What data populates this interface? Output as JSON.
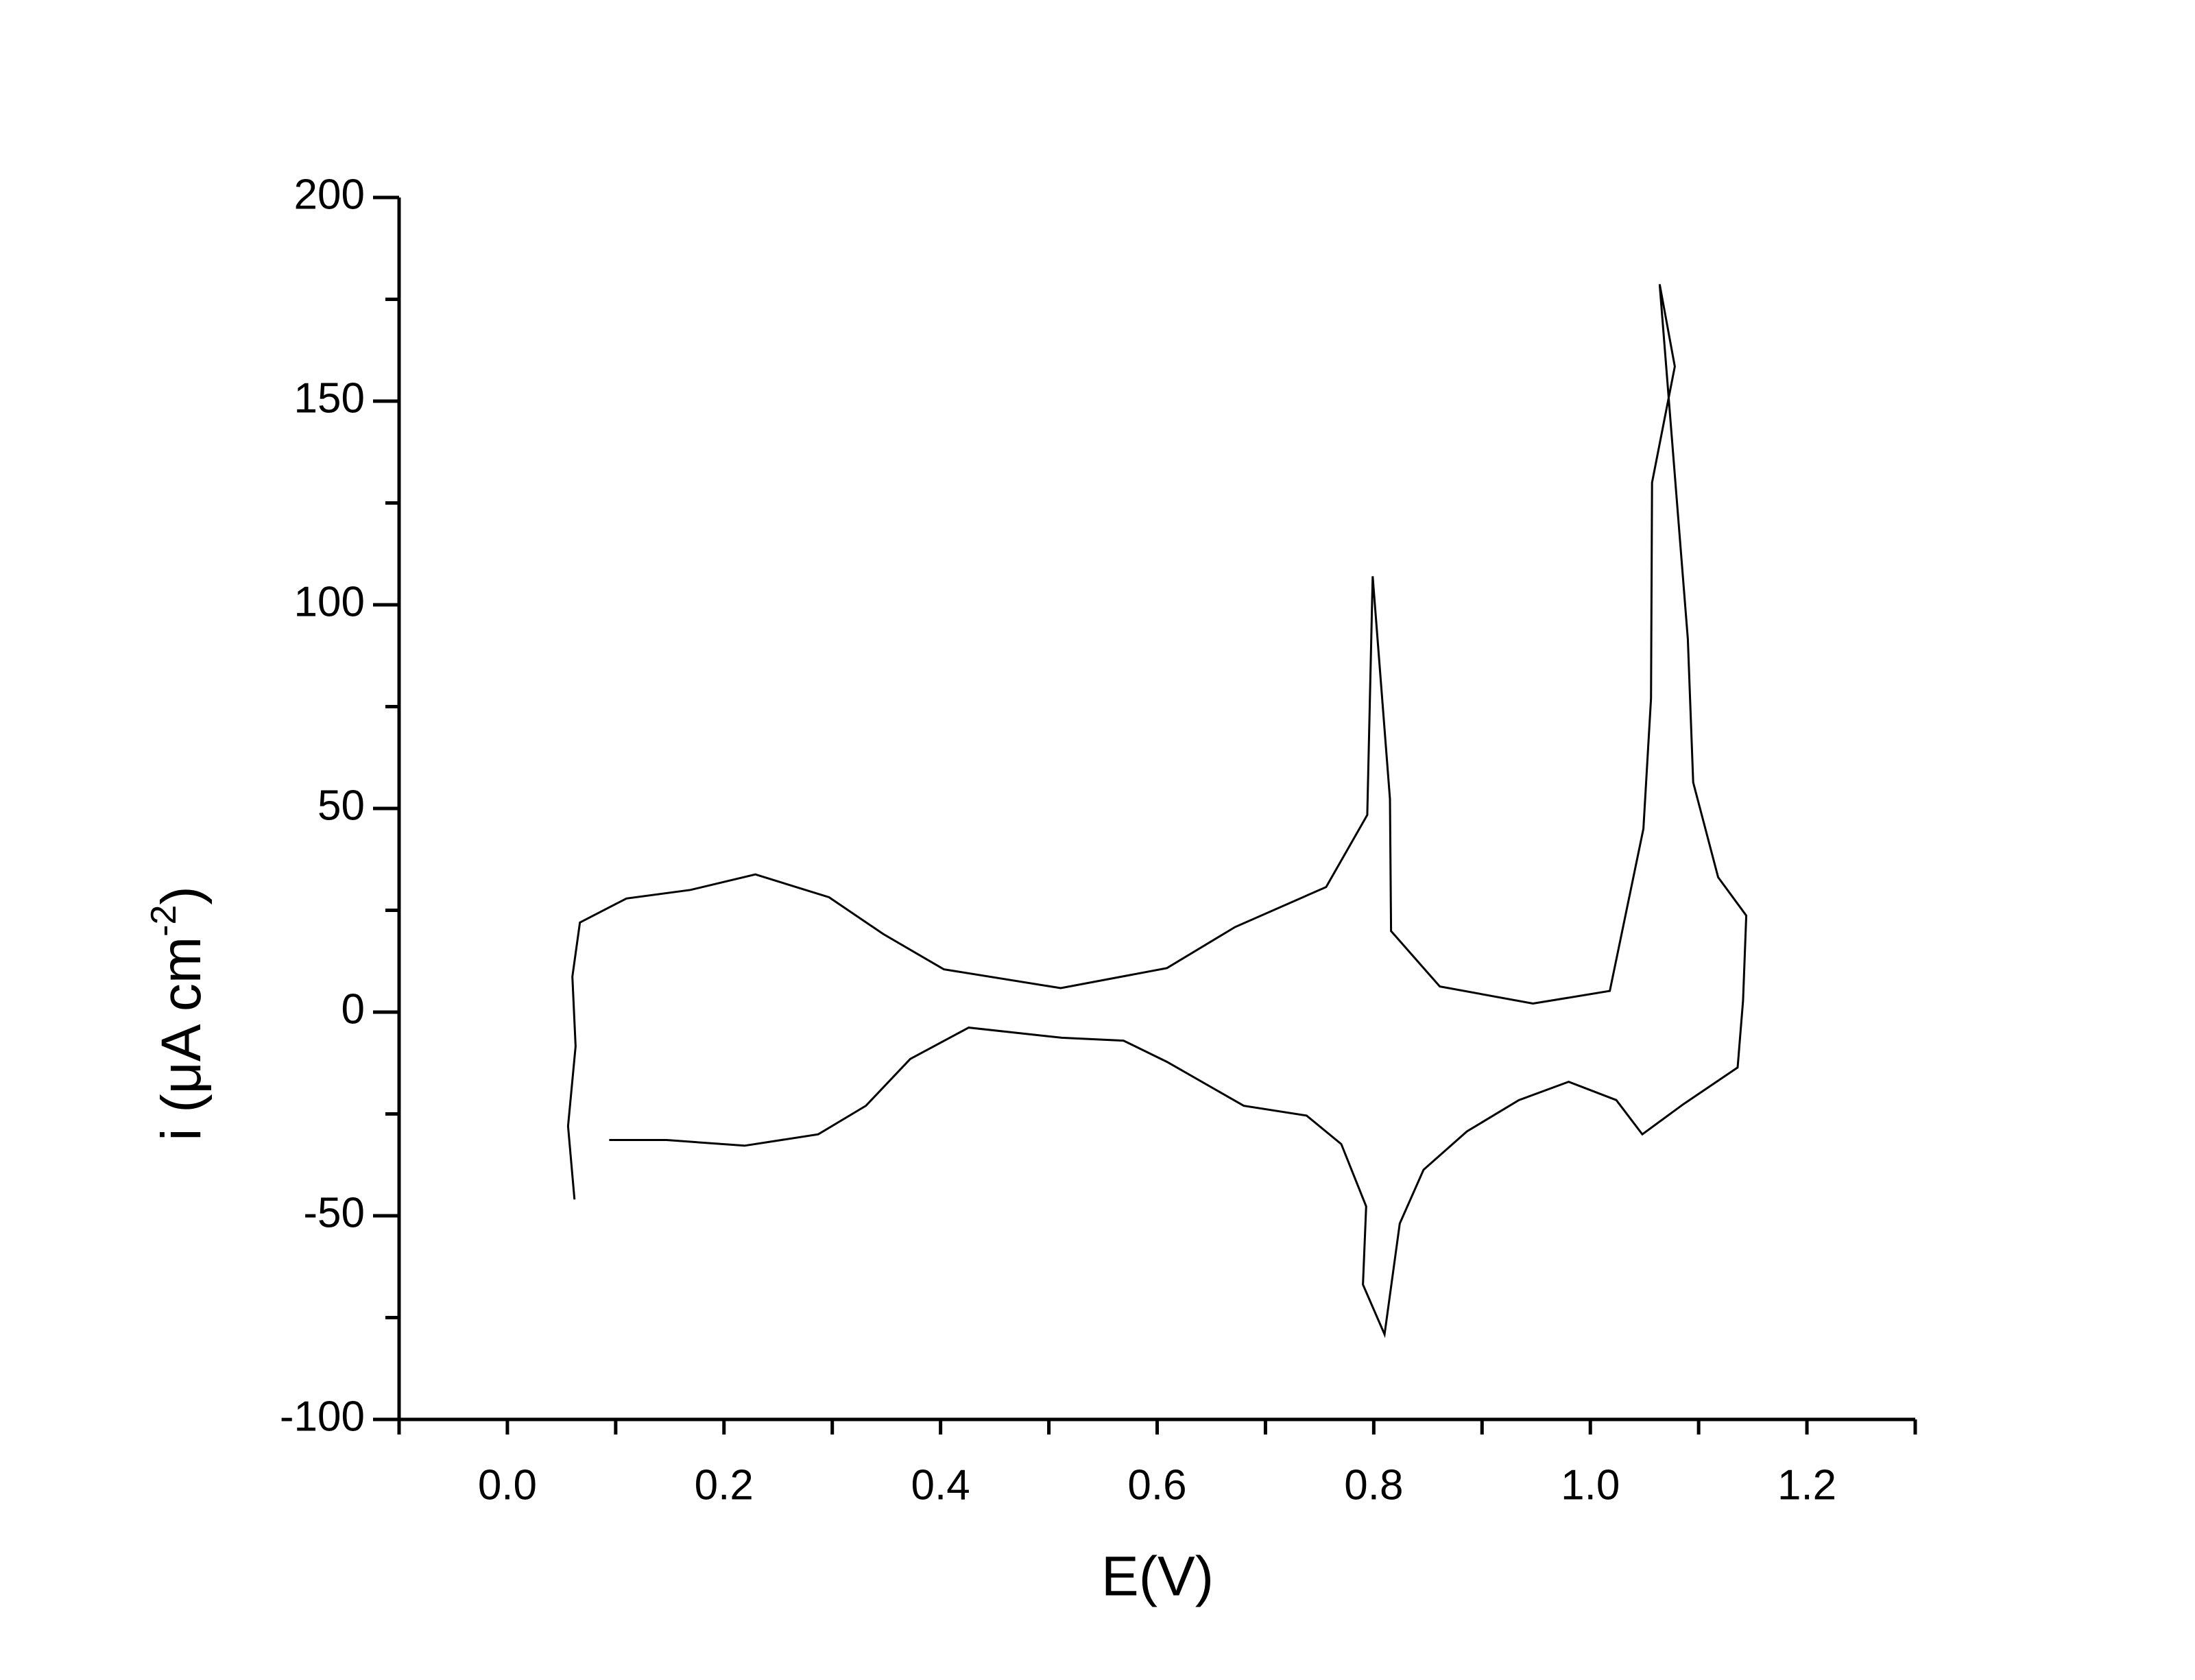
{
  "chart_data": {
    "type": "line",
    "x_label": "E(V)",
    "y_label": [
      "i (μA cm",
      "-2",
      ")"
    ],
    "x": [
      0.062,
      0.056,
      0.063,
      0.06,
      0.067,
      0.11,
      0.169,
      0.229,
      0.297,
      0.347,
      0.403,
      0.511,
      0.609,
      0.672,
      0.756,
      0.794,
      0.799,
      0.815,
      0.816,
      0.861,
      0.947,
      1.018,
      1.049,
      1.056,
      1.057,
      1.078,
      1.064,
      1.09,
      1.095,
      1.118,
      1.144,
      1.141,
      1.136,
      1.086,
      1.048,
      1.024,
      0.98,
      0.934,
      0.886,
      0.846,
      0.824,
      0.81,
      0.79,
      0.793,
      0.77,
      0.738,
      0.68,
      0.609,
      0.569,
      0.512,
      0.426,
      0.372,
      0.331,
      0.287,
      0.219,
      0.147,
      0.094
    ],
    "values": [
      -46,
      -28,
      -8.4,
      8.7,
      22,
      27.9,
      30,
      33.8,
      28.2,
      19.2,
      10.5,
      5.9,
      10.8,
      20.9,
      30.7,
      48.4,
      107,
      52.3,
      19.9,
      6.3,
      2.1,
      5.2,
      45,
      77,
      130,
      158.5,
      178.7,
      91.6,
      56.4,
      33.1,
      23.7,
      2.8,
      -13.6,
      -22.6,
      -30,
      -21.6,
      -17.1,
      -21.6,
      -29.3,
      -38.7,
      -51.9,
      -79.1,
      -66.9,
      -47.7,
      -32.4,
      -25.4,
      -23,
      -12.2,
      -7,
      -6.3,
      -3.8,
      -11.5,
      -23,
      -30,
      -32.8,
      -31.4,
      -31.4
    ],
    "color": "#000000",
    "xlim": [
      -0.1,
      1.3
    ],
    "xticks": [
      {
        "value": 0,
        "label": "0.0"
      },
      0.2,
      0.4,
      0.6,
      0.8,
      {
        "value": 1,
        "label": "1.0"
      },
      1.2
    ],
    "xminorticks": [
      -0.1,
      0.1,
      0.3,
      0.5,
      0.7,
      0.9,
      1.1,
      1.3
    ],
    "ylim": [
      -100,
      200
    ],
    "yticks": [
      -100,
      -50,
      0,
      50,
      100,
      150,
      200
    ],
    "yminorticks": [
      -75,
      -25,
      25,
      75,
      125,
      175
    ],
    "grid": false
  }
}
